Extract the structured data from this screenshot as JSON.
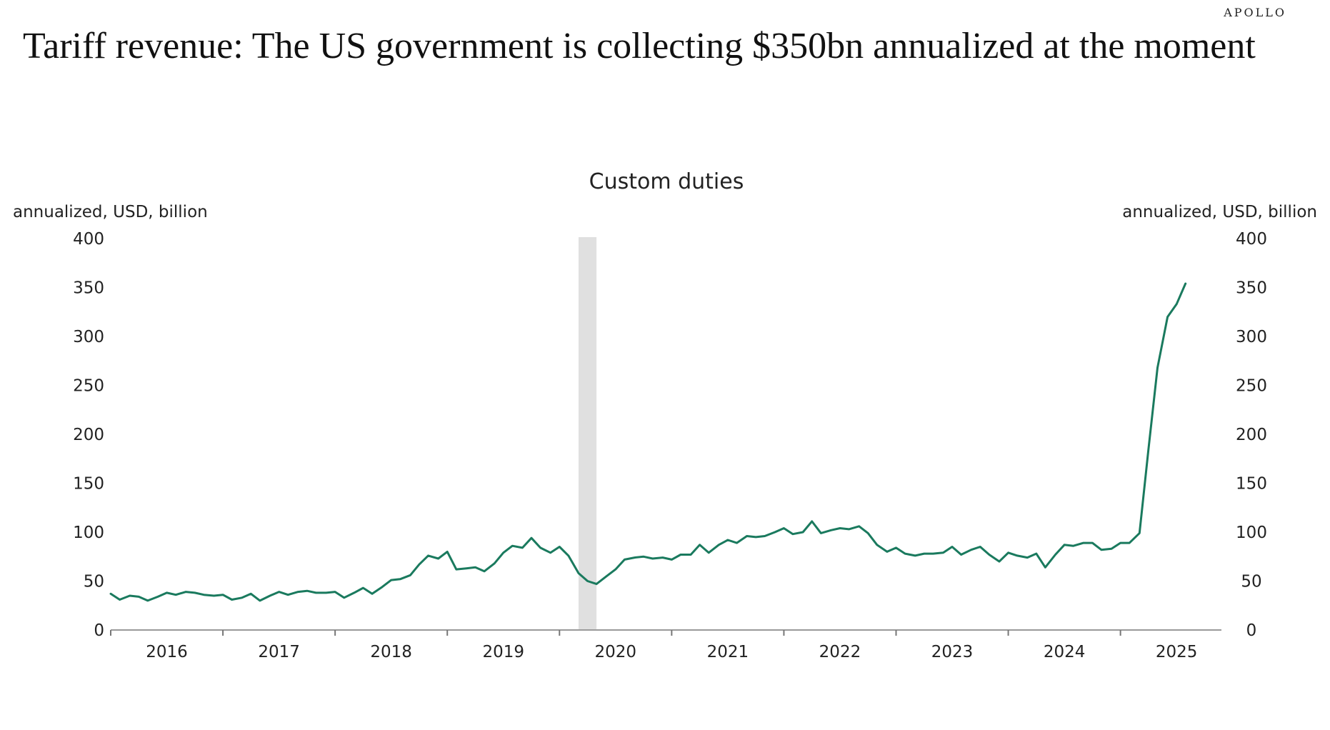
{
  "brand": "APOLLO",
  "headline": "Tariff revenue: The US government is collecting $350bn annualized at the moment",
  "chart_data": {
    "type": "line",
    "title": "Custom duties",
    "ylabel_left": "annualized, USD, billion",
    "ylabel_right": "annualized, USD, billion",
    "ylim": [
      0,
      400
    ],
    "yticks": [
      0,
      50,
      100,
      150,
      200,
      250,
      300,
      350,
      400
    ],
    "xlim": [
      2015.5,
      2025.4
    ],
    "xticks": [
      2015.5,
      2016.5,
      2017.5,
      2018.5,
      2019.5,
      2020.5,
      2021.5,
      2022.5,
      2023.5,
      2024.5
    ],
    "xticklabels": [
      {
        "x": 2016,
        "label": "2016"
      },
      {
        "x": 2017,
        "label": "2017"
      },
      {
        "x": 2018,
        "label": "2018"
      },
      {
        "x": 2019,
        "label": "2019"
      },
      {
        "x": 2020,
        "label": "2020"
      },
      {
        "x": 2021,
        "label": "2021"
      },
      {
        "x": 2022,
        "label": "2022"
      },
      {
        "x": 2023,
        "label": "2023"
      },
      {
        "x": 2024,
        "label": "2024"
      },
      {
        "x": 2025,
        "label": "2025"
      }
    ],
    "recession": {
      "start": 2019.67,
      "end": 2019.83
    },
    "line_color": "#1a7a5e",
    "recession_color": "#e0e0e0",
    "series": [
      {
        "name": "Custom duties",
        "points": [
          [
            2015.5,
            37
          ],
          [
            2015.58,
            31
          ],
          [
            2015.67,
            35
          ],
          [
            2015.75,
            34
          ],
          [
            2015.83,
            30
          ],
          [
            2015.92,
            34
          ],
          [
            2016.0,
            38
          ],
          [
            2016.08,
            36
          ],
          [
            2016.17,
            39
          ],
          [
            2016.25,
            38
          ],
          [
            2016.33,
            36
          ],
          [
            2016.42,
            35
          ],
          [
            2016.5,
            36
          ],
          [
            2016.58,
            31
          ],
          [
            2016.67,
            33
          ],
          [
            2016.75,
            37
          ],
          [
            2016.83,
            30
          ],
          [
            2016.92,
            35
          ],
          [
            2017.0,
            39
          ],
          [
            2017.08,
            36
          ],
          [
            2017.17,
            39
          ],
          [
            2017.25,
            40
          ],
          [
            2017.33,
            38
          ],
          [
            2017.42,
            38
          ],
          [
            2017.5,
            39
          ],
          [
            2017.58,
            33
          ],
          [
            2017.67,
            38
          ],
          [
            2017.75,
            43
          ],
          [
            2017.83,
            37
          ],
          [
            2017.92,
            44
          ],
          [
            2018.0,
            51
          ],
          [
            2018.08,
            52
          ],
          [
            2018.17,
            56
          ],
          [
            2018.25,
            67
          ],
          [
            2018.33,
            76
          ],
          [
            2018.42,
            73
          ],
          [
            2018.5,
            80
          ],
          [
            2018.58,
            62
          ],
          [
            2018.67,
            63
          ],
          [
            2018.75,
            64
          ],
          [
            2018.83,
            60
          ],
          [
            2018.92,
            68
          ],
          [
            2019.0,
            79
          ],
          [
            2019.08,
            86
          ],
          [
            2019.17,
            84
          ],
          [
            2019.25,
            94
          ],
          [
            2019.33,
            84
          ],
          [
            2019.42,
            79
          ],
          [
            2019.5,
            85
          ],
          [
            2019.58,
            76
          ],
          [
            2019.67,
            58
          ],
          [
            2019.75,
            50
          ],
          [
            2019.83,
            47
          ],
          [
            2019.92,
            55
          ],
          [
            2020.0,
            62
          ],
          [
            2020.08,
            72
          ],
          [
            2020.17,
            74
          ],
          [
            2020.25,
            75
          ],
          [
            2020.33,
            73
          ],
          [
            2020.42,
            74
          ],
          [
            2020.5,
            72
          ],
          [
            2020.58,
            77
          ],
          [
            2020.67,
            77
          ],
          [
            2020.75,
            87
          ],
          [
            2020.83,
            79
          ],
          [
            2020.92,
            87
          ],
          [
            2021.0,
            92
          ],
          [
            2021.08,
            89
          ],
          [
            2021.17,
            96
          ],
          [
            2021.25,
            95
          ],
          [
            2021.33,
            96
          ],
          [
            2021.42,
            100
          ],
          [
            2021.5,
            104
          ],
          [
            2021.58,
            98
          ],
          [
            2021.67,
            100
          ],
          [
            2021.75,
            111
          ],
          [
            2021.83,
            99
          ],
          [
            2021.92,
            102
          ],
          [
            2022.0,
            104
          ],
          [
            2022.08,
            103
          ],
          [
            2022.17,
            106
          ],
          [
            2022.25,
            99
          ],
          [
            2022.33,
            87
          ],
          [
            2022.42,
            80
          ],
          [
            2022.5,
            84
          ],
          [
            2022.58,
            78
          ],
          [
            2022.67,
            76
          ],
          [
            2022.75,
            78
          ],
          [
            2022.83,
            78
          ],
          [
            2022.92,
            79
          ],
          [
            2023.0,
            85
          ],
          [
            2023.08,
            77
          ],
          [
            2023.17,
            82
          ],
          [
            2023.25,
            85
          ],
          [
            2023.33,
            77
          ],
          [
            2023.42,
            70
          ],
          [
            2023.5,
            79
          ],
          [
            2023.58,
            76
          ],
          [
            2023.67,
            74
          ],
          [
            2023.75,
            78
          ],
          [
            2023.83,
            64
          ],
          [
            2023.92,
            77
          ],
          [
            2024.0,
            87
          ],
          [
            2024.08,
            86
          ],
          [
            2024.17,
            89
          ],
          [
            2024.25,
            89
          ],
          [
            2024.33,
            82
          ],
          [
            2024.42,
            83
          ],
          [
            2024.5,
            89
          ],
          [
            2024.58,
            89
          ],
          [
            2024.67,
            99
          ],
          [
            2024.75,
            185
          ],
          [
            2024.83,
            268
          ],
          [
            2024.92,
            320
          ],
          [
            2025.0,
            333
          ],
          [
            2025.08,
            354
          ]
        ]
      }
    ]
  }
}
